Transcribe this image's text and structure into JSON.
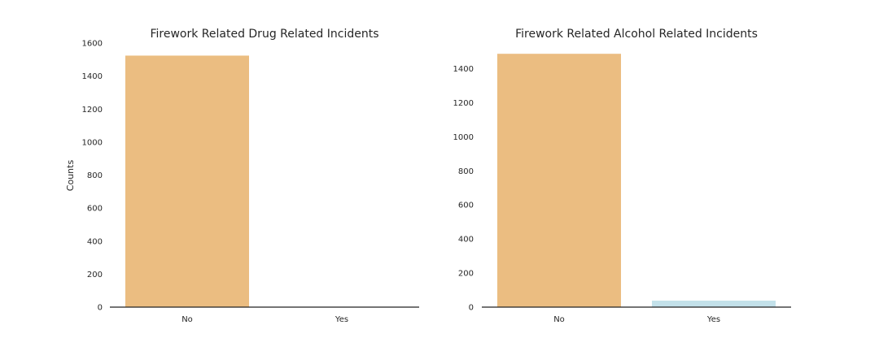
{
  "colors": {
    "no_bar": "#ebbd81",
    "yes_bar": "#c3e1ea",
    "axis": "#222222",
    "text": "#262626"
  },
  "chart_data": [
    {
      "type": "bar",
      "title": "Firework Related Drug Related Incidents",
      "xlabel": "",
      "ylabel": "Counts",
      "categories": [
        "No",
        "Yes"
      ],
      "values": [
        1524,
        1
      ],
      "ylim": [
        0,
        1600
      ],
      "yticks": [
        0,
        200,
        400,
        600,
        800,
        1000,
        1200,
        1400,
        1600
      ],
      "grid": false
    },
    {
      "type": "bar",
      "title": "Firework Related Alcohol Related Incidents",
      "xlabel": "",
      "ylabel": "",
      "categories": [
        "No",
        "Yes"
      ],
      "values": [
        1487,
        38
      ],
      "ylim": [
        0,
        1550
      ],
      "yticks": [
        0,
        200,
        400,
        600,
        800,
        1000,
        1200,
        1400
      ],
      "grid": false
    }
  ]
}
